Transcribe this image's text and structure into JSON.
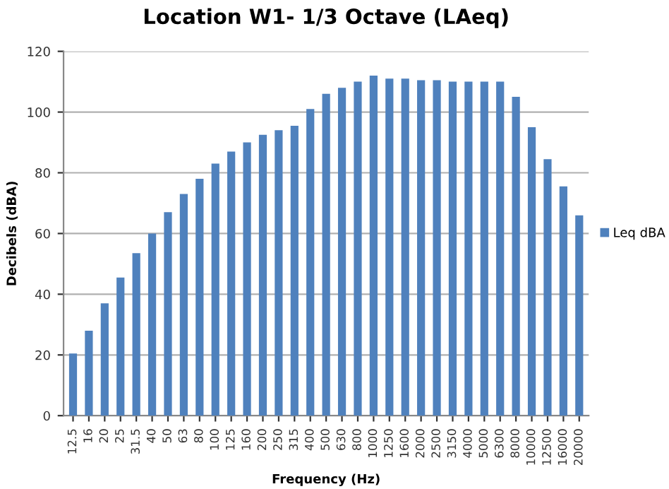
{
  "chart_data": {
    "type": "bar",
    "title": "Location W1- 1/3 Octave (LAeq)",
    "xlabel": "Frequency (Hz)",
    "ylabel": "Decibels (dBA)",
    "categories": [
      "12.5",
      "16",
      "20",
      "25",
      "31.5",
      "40",
      "50",
      "63",
      "80",
      "100",
      "125",
      "160",
      "200",
      "250",
      "315",
      "400",
      "500",
      "630",
      "800",
      "1000",
      "1250",
      "1600",
      "2000",
      "2500",
      "3150",
      "4000",
      "5000",
      "6300",
      "8000",
      "10000",
      "12500",
      "16000",
      "20000"
    ],
    "series": [
      {
        "name": "Leq dBA",
        "color": "#4f81bd",
        "values": [
          20.5,
          28,
          37,
          45.5,
          53.5,
          60,
          67,
          73,
          78,
          83,
          87,
          90,
          92.5,
          94,
          95.5,
          101,
          106,
          108,
          110,
          112,
          111,
          111,
          110.5,
          110.5,
          110,
          110,
          110,
          110,
          105,
          95,
          84.5,
          75.5,
          66
        ]
      }
    ],
    "ylim": [
      0,
      120
    ],
    "yticks": [
      0,
      20,
      40,
      60,
      80,
      100,
      120
    ],
    "grid": "y",
    "legend": "right"
  }
}
